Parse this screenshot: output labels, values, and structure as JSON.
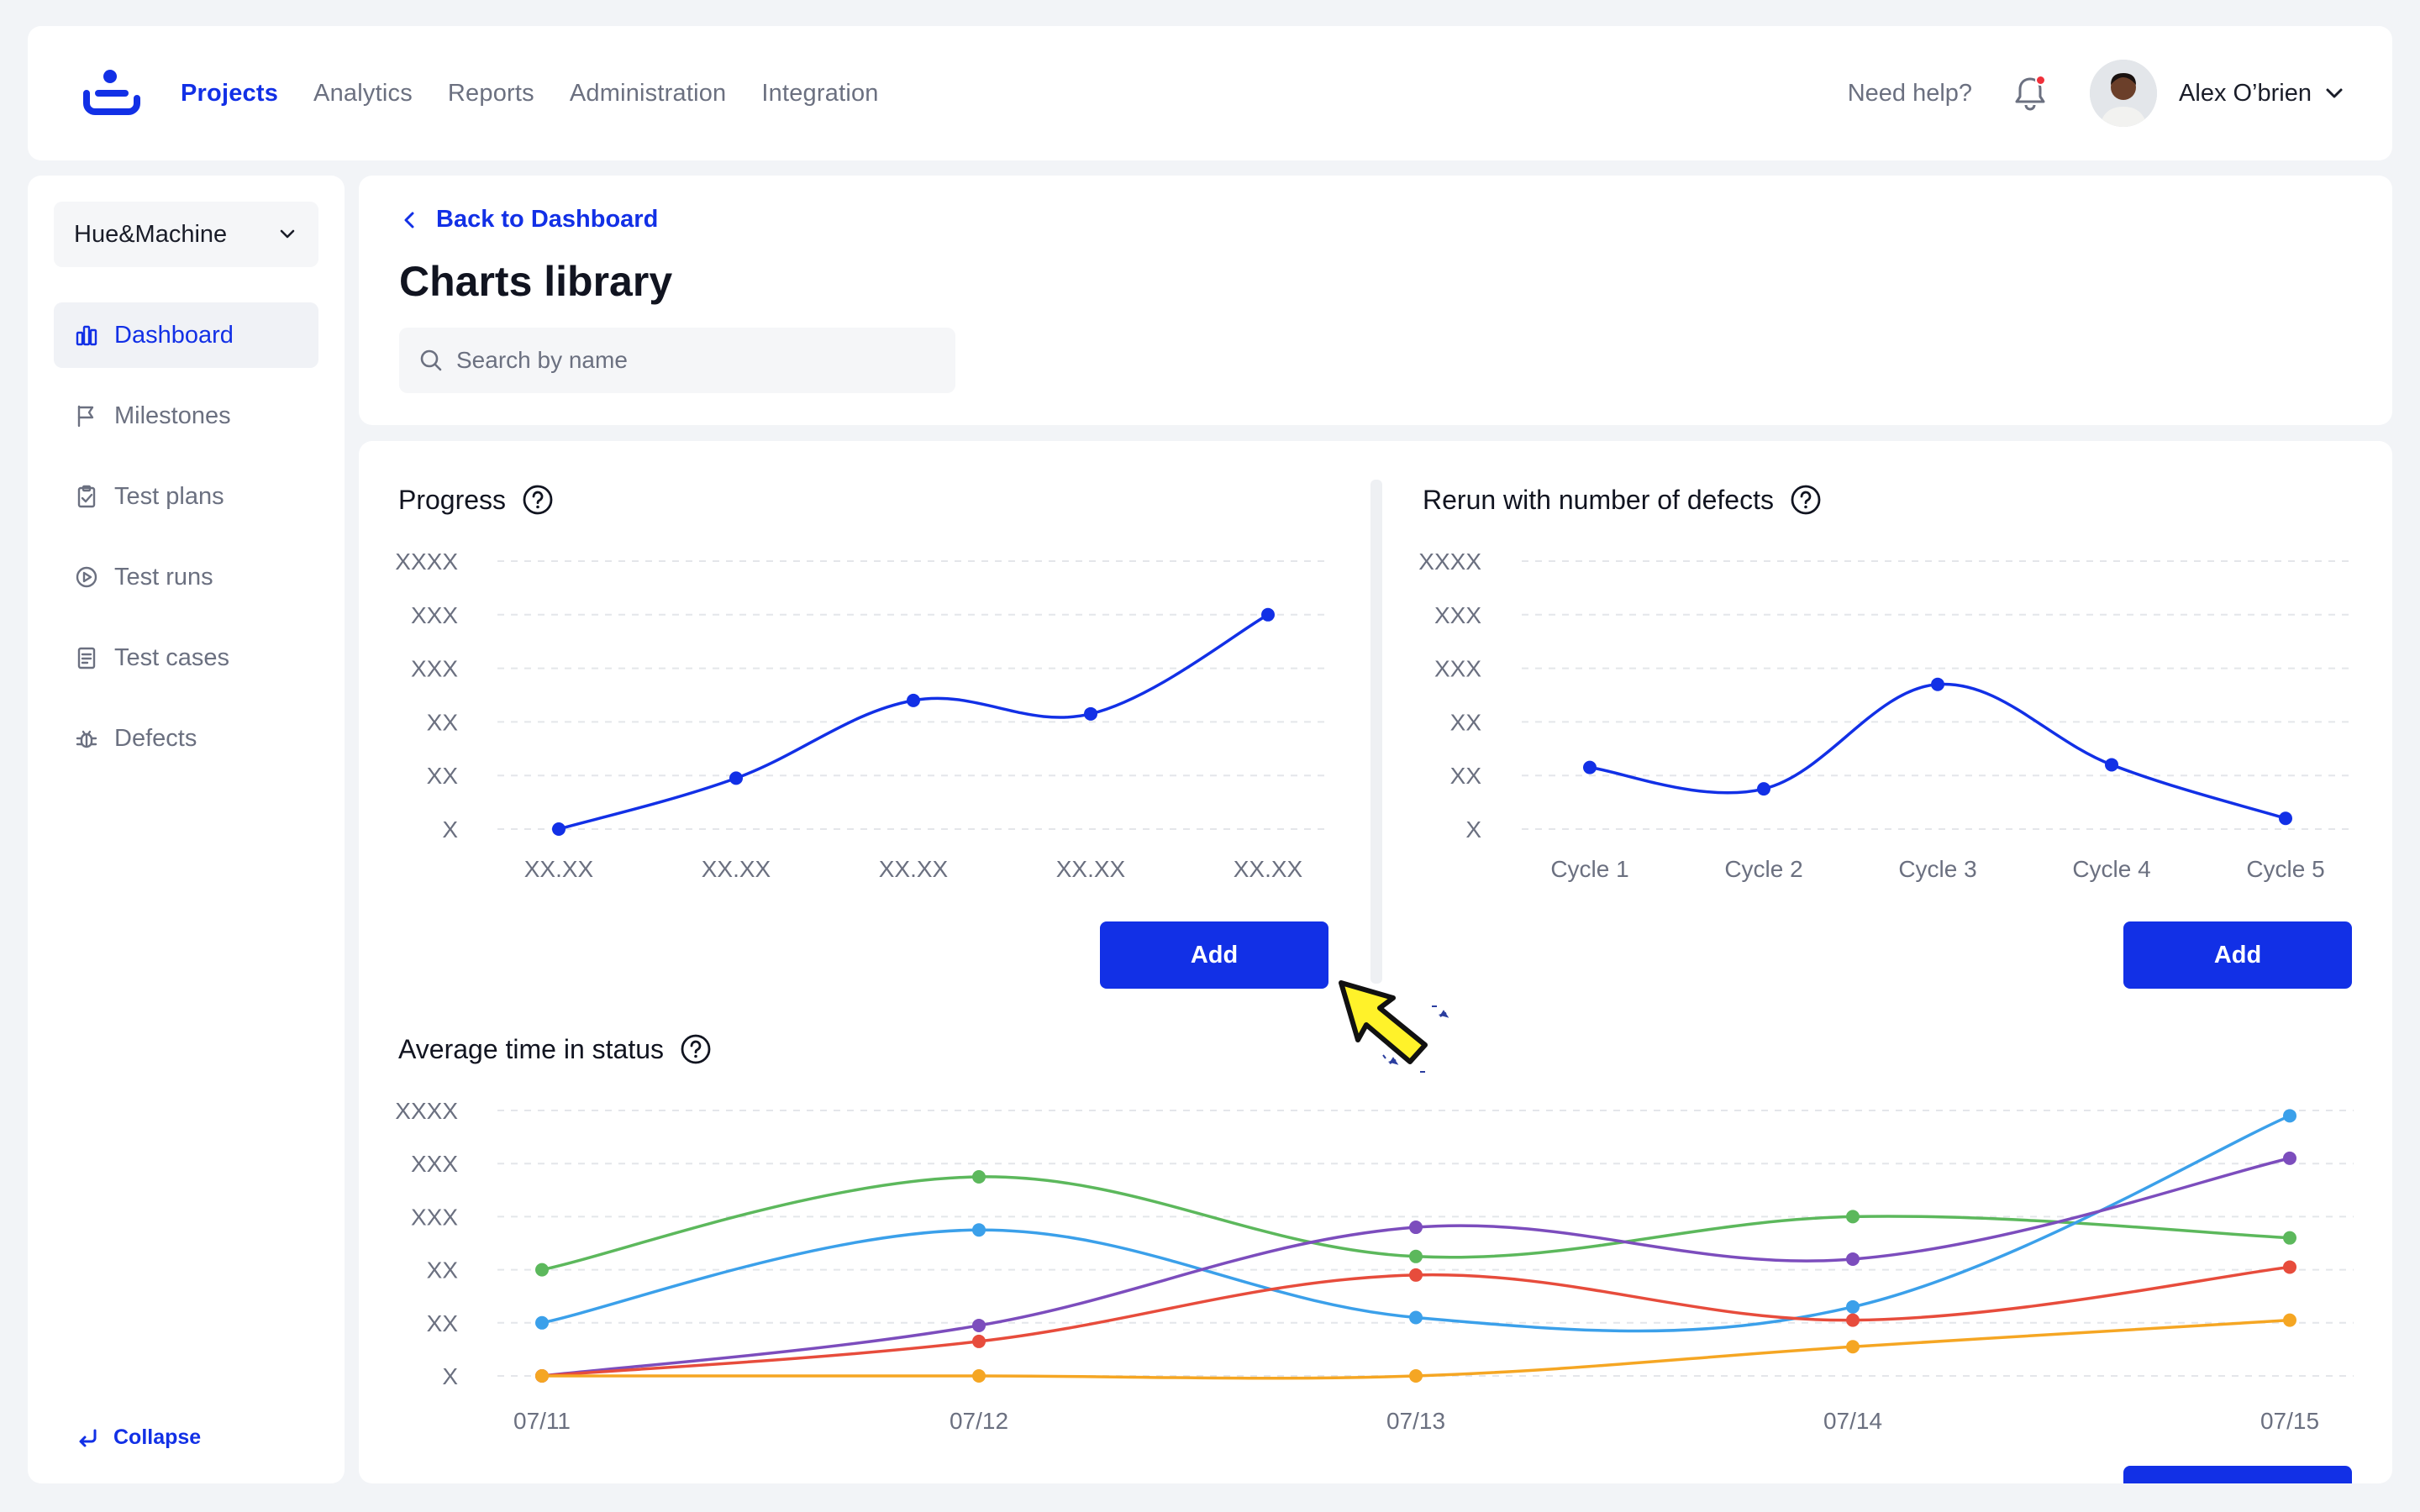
{
  "topbar": {
    "nav": [
      "Projects",
      "Analytics",
      "Reports",
      "Administration",
      "Integration"
    ],
    "active_nav": 0,
    "help": "Need help?",
    "user_name": "Alex O’brien",
    "accent": "#1230e6"
  },
  "sidebar": {
    "workspace": "Hue&Machine",
    "items": [
      {
        "label": "Dashboard",
        "icon": "chart-bar-icon",
        "active": true
      },
      {
        "label": "Milestones",
        "icon": "flag-icon",
        "active": false
      },
      {
        "label": "Test plans",
        "icon": "clipboard-check-icon",
        "active": false
      },
      {
        "label": "Test runs",
        "icon": "play-circle-icon",
        "active": false
      },
      {
        "label": "Test cases",
        "icon": "document-list-icon",
        "active": false
      },
      {
        "label": "Defects",
        "icon": "bug-icon",
        "active": false
      }
    ],
    "collapse": "Collapse"
  },
  "header": {
    "back": "Back to Dashboard",
    "title": "Charts library",
    "search_placeholder": "Search by name"
  },
  "charts": {
    "add_label": "Add",
    "progress": {
      "title": "Progress",
      "add_label": "Add"
    },
    "rerun": {
      "title": "Rerun with number of defects",
      "add_label": "Add"
    },
    "avg": {
      "title": "Average time in status"
    }
  },
  "chart_data": [
    {
      "type": "line",
      "title": "Progress",
      "ytick_labels": [
        "X",
        "XX",
        "XX",
        "XXX",
        "XXX",
        "XXXX"
      ],
      "categories": [
        "XX.XX",
        "XX.XX",
        "XX.XX",
        "XX.XX",
        "XX.XX"
      ],
      "ylim": [
        0,
        5
      ],
      "series": [
        {
          "color": "#1230e6",
          "values": [
            0,
            0.95,
            2.4,
            2.15,
            4.0
          ]
        }
      ],
      "grid": true
    },
    {
      "type": "line",
      "title": "Rerun with number of defects",
      "ytick_labels": [
        "X",
        "XX",
        "XX",
        "XXX",
        "XXX",
        "XXXX"
      ],
      "categories": [
        "Cycle 1",
        "Cycle 2",
        "Cycle 3",
        "Cycle 4",
        "Cycle 5"
      ],
      "ylim": [
        0,
        5
      ],
      "series": [
        {
          "color": "#1230e6",
          "values": [
            1.15,
            0.75,
            2.7,
            1.2,
            0.2
          ]
        }
      ],
      "grid": true
    },
    {
      "type": "line",
      "title": "Average time in status",
      "ytick_labels": [
        "X",
        "XX",
        "XX",
        "XXX",
        "XXX",
        "XXXX"
      ],
      "categories": [
        "07/11",
        "07/12",
        "07/13",
        "07/14",
        "07/15"
      ],
      "ylim": [
        0,
        5
      ],
      "series": [
        {
          "color": "#5cb85c",
          "values": [
            2.0,
            3.75,
            2.25,
            3.0,
            2.6
          ]
        },
        {
          "color": "#3ba0ea",
          "values": [
            1.0,
            2.75,
            1.1,
            1.3,
            4.9
          ]
        },
        {
          "color": "#7c4dbd",
          "values": [
            0.0,
            0.95,
            2.8,
            2.2,
            4.1
          ]
        },
        {
          "color": "#e74c3c",
          "values": [
            0.0,
            0.65,
            1.9,
            1.05,
            2.05
          ]
        },
        {
          "color": "#f5a623",
          "values": [
            0.0,
            0.0,
            0.0,
            0.55,
            1.05
          ]
        }
      ],
      "grid": true
    }
  ]
}
